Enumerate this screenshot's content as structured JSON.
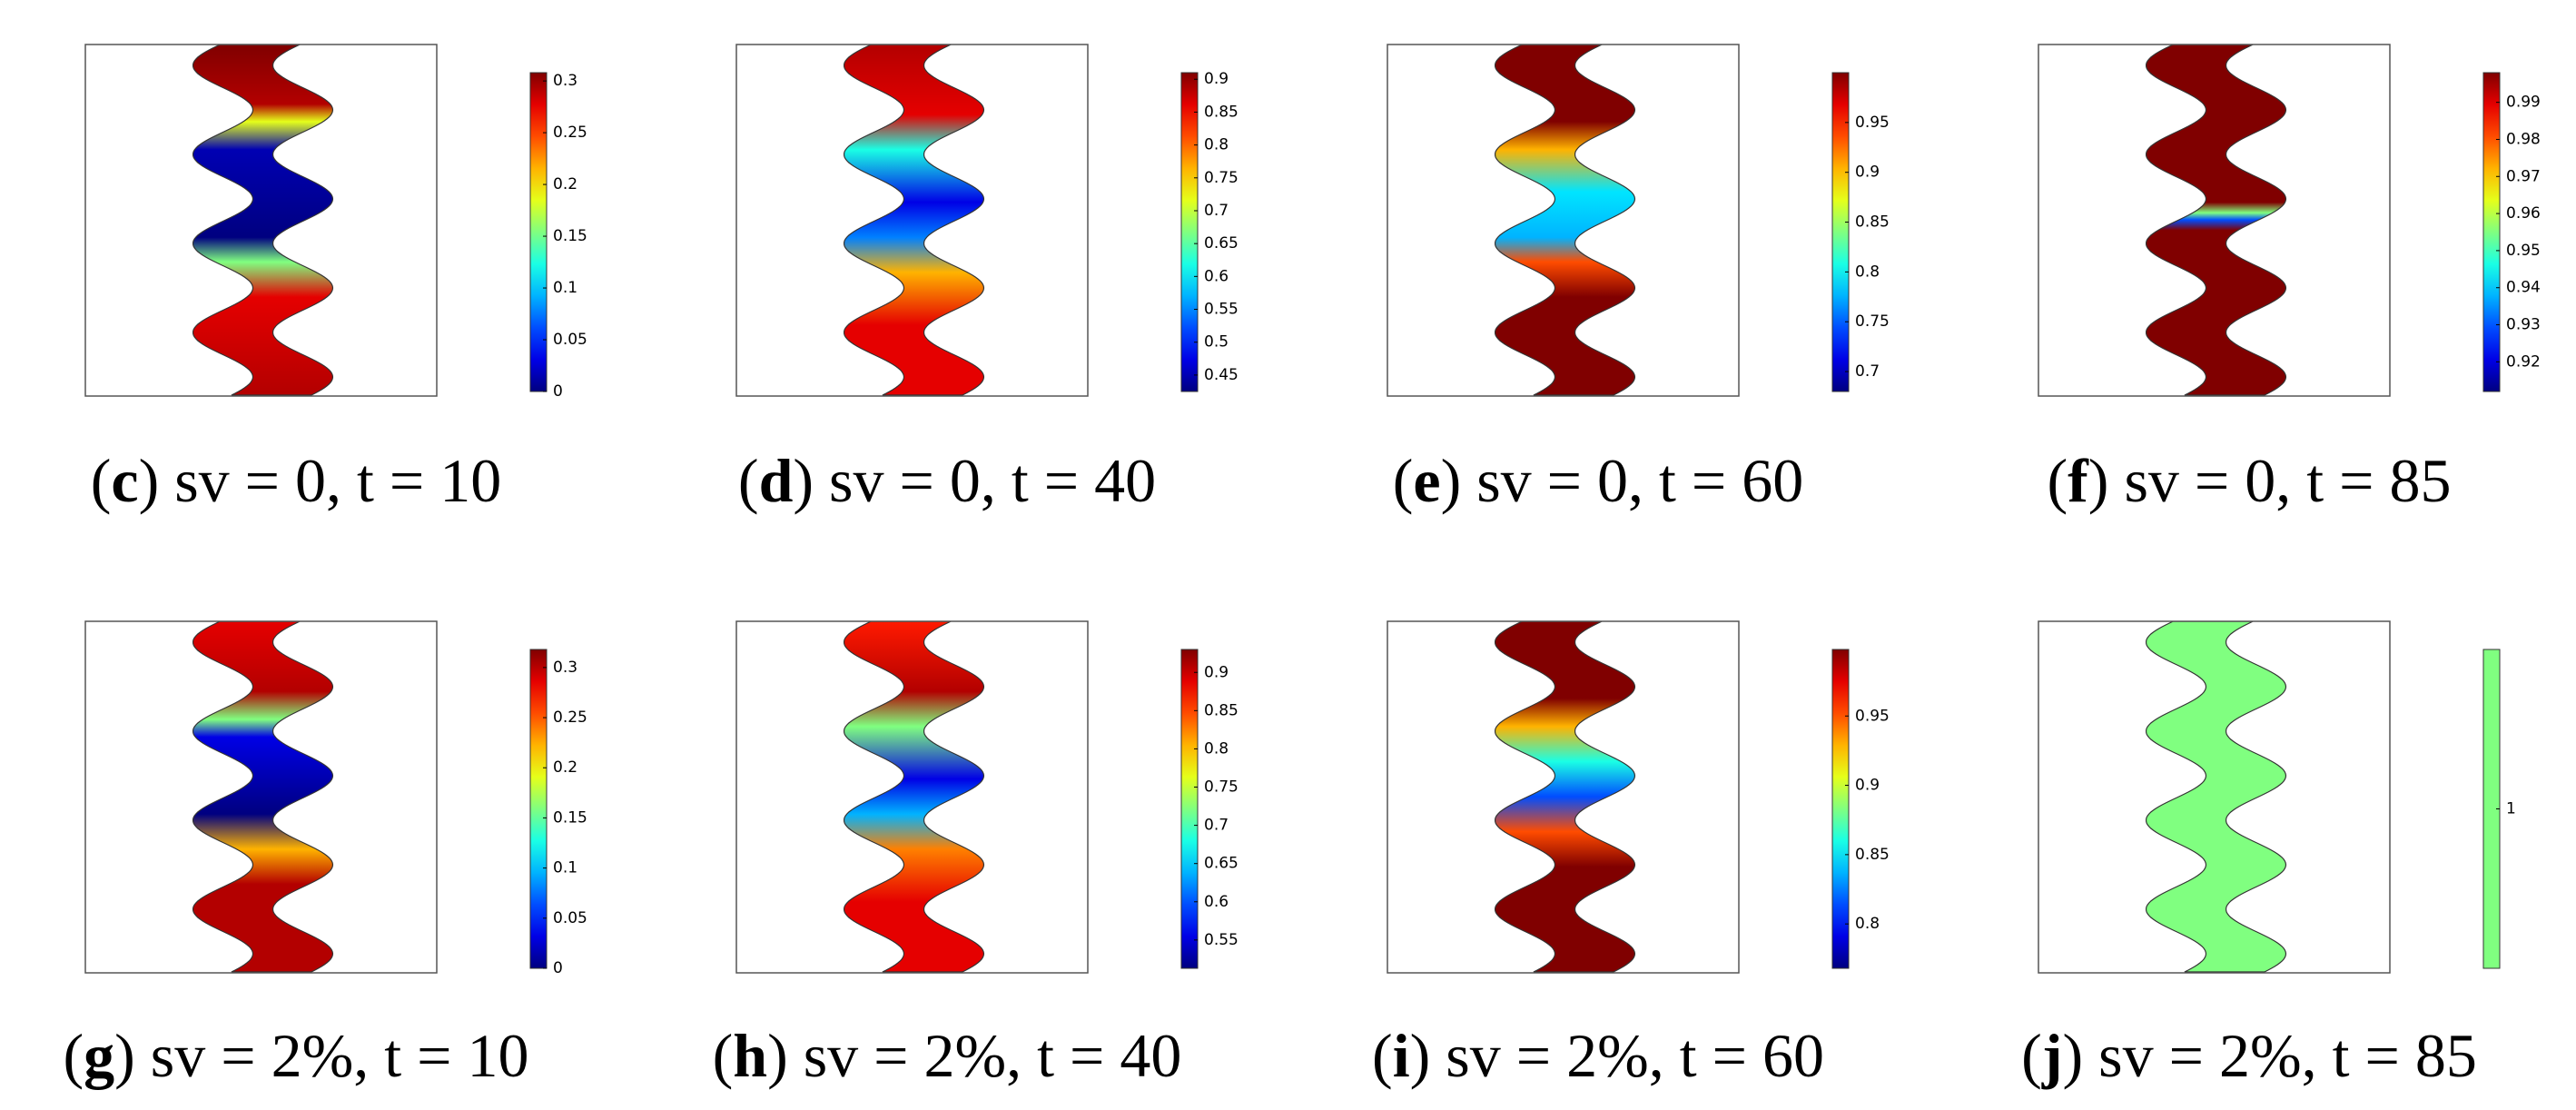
{
  "panels": [
    {
      "caption": {
        "open": "(",
        "letter": "c",
        "text": ") sv = 0, t = 10"
      },
      "colorbar": {
        "colormap": "jet",
        "lim": [
          0,
          0.308
        ],
        "ticks": [
          0,
          0.05,
          0.1,
          0.15,
          0.2,
          0.25,
          0.3
        ]
      }
    },
    {
      "caption": {
        "open": "(",
        "letter": "d",
        "text": ") sv = 0, t = 40"
      },
      "colorbar": {
        "colormap": "jet",
        "lim": [
          0.425,
          0.91
        ],
        "ticks": [
          0.45,
          0.5,
          0.55,
          0.6,
          0.65,
          0.7,
          0.75,
          0.8,
          0.85,
          0.9
        ]
      }
    },
    {
      "caption": {
        "open": "(",
        "letter": "e",
        "text": ") sv = 0, t = 60"
      },
      "colorbar": {
        "colormap": "jet",
        "lim": [
          0.68,
          1
        ],
        "ticks": [
          0.7,
          0.75,
          0.8,
          0.85,
          0.9,
          0.95
        ]
      }
    },
    {
      "caption": {
        "open": "(",
        "letter": "f",
        "text": ") sv = 0, t = 85"
      },
      "colorbar": {
        "colormap": "jet",
        "lim": [
          0.912,
          0.998
        ],
        "ticks": [
          0.92,
          0.93,
          0.94,
          0.95,
          0.96,
          0.97,
          0.98,
          0.99
        ]
      }
    },
    {
      "caption": {
        "open": "(",
        "letter": "g",
        "text": ") sv = 2%, t = 10"
      },
      "colorbar": {
        "colormap": "jet",
        "lim": [
          0,
          0.318
        ],
        "ticks": [
          0,
          0.05,
          0.1,
          0.15,
          0.2,
          0.25,
          0.3
        ]
      }
    },
    {
      "caption": {
        "open": "(",
        "letter": "h",
        "text": ") sv = 2%, t = 40"
      },
      "colorbar": {
        "colormap": "jet",
        "lim": [
          0.513,
          0.93
        ],
        "ticks": [
          0.55,
          0.6,
          0.65,
          0.7,
          0.75,
          0.8,
          0.85,
          0.9
        ]
      }
    },
    {
      "caption": {
        "open": "(",
        "letter": "i",
        "text": ") sv = 2%, t = 60"
      },
      "colorbar": {
        "colormap": "jet",
        "lim": [
          0.768,
          0.998
        ],
        "ticks": [
          0.8,
          0.85,
          0.9,
          0.95
        ]
      }
    },
    {
      "caption": {
        "open": "(",
        "letter": "j",
        "text": ") sv = 2%, t = 85"
      },
      "colorbar": {
        "colormap": "#80ff80",
        "lim": [
          0.99,
          1.01
        ],
        "ticks": [
          1
        ]
      }
    }
  ]
}
